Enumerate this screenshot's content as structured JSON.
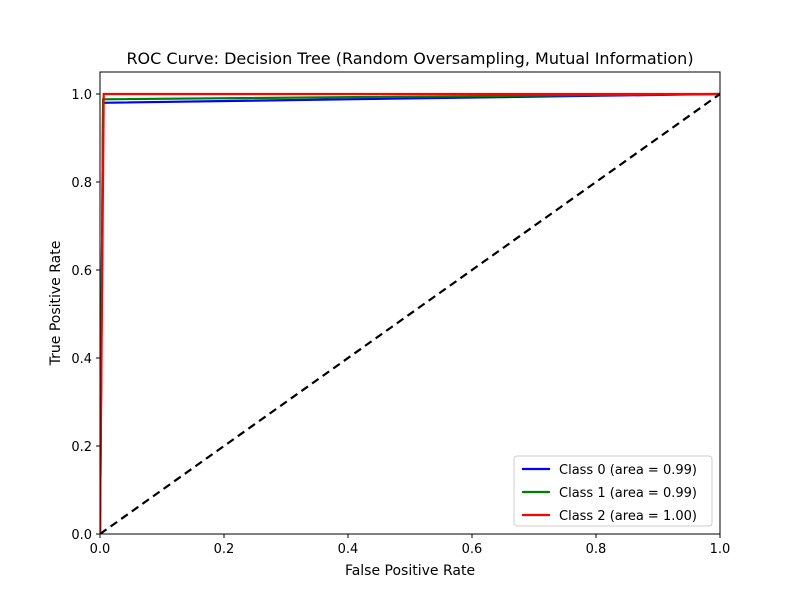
{
  "chart_data": {
    "type": "line",
    "title": "ROC Curve: Decision Tree (Random Oversampling, Mutual Information)",
    "xlabel": "False Positive Rate",
    "ylabel": "True Positive Rate",
    "xlim": [
      0,
      1
    ],
    "ylim": [
      0,
      1.05
    ],
    "xticks": [
      0.0,
      0.2,
      0.4,
      0.6,
      0.8,
      1.0
    ],
    "yticks": [
      0.0,
      0.2,
      0.4,
      0.6,
      0.8,
      1.0
    ],
    "xtick_labels": [
      "0.0",
      "0.2",
      "0.4",
      "0.6",
      "0.8",
      "1.0"
    ],
    "ytick_labels": [
      "0.0",
      "0.2",
      "0.4",
      "0.6",
      "0.8",
      "1.0"
    ],
    "grid": false,
    "legend_position": "lower-right",
    "series": [
      {
        "name": "Class 0 (area = 0.99)",
        "color": "#0000ff",
        "x": [
          0.0,
          0.005,
          1.0
        ],
        "y": [
          0.0,
          0.98,
          1.0
        ]
      },
      {
        "name": "Class 1 (area = 0.99)",
        "color": "#008000",
        "x": [
          0.0,
          0.005,
          1.0
        ],
        "y": [
          0.0,
          0.988,
          1.0
        ]
      },
      {
        "name": "Class 2 (area = 1.00)",
        "color": "#ff0000",
        "x": [
          0.0,
          0.006,
          1.0
        ],
        "y": [
          0.0,
          1.0,
          1.0
        ]
      }
    ],
    "reference_line": {
      "color": "#000000",
      "style": "dashed",
      "x": [
        0,
        1
      ],
      "y": [
        0,
        1
      ]
    }
  }
}
